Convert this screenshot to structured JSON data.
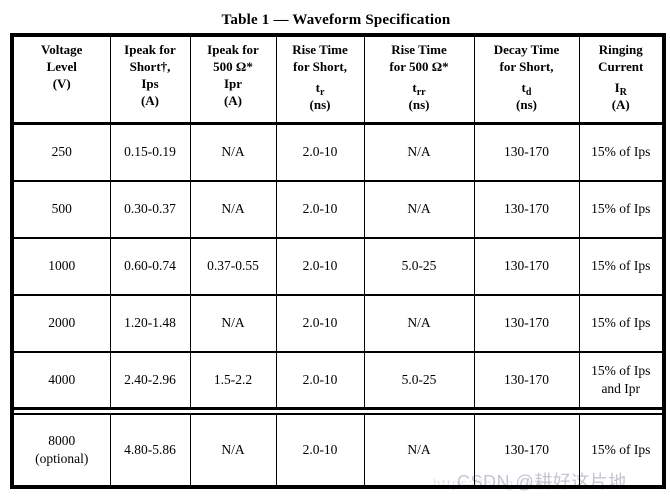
{
  "page": {
    "title": "Table 1 — Waveform Specification",
    "watermark": {
      "url_text": "https://blog.csdn",
      "label": "CSDN @耕好这片地",
      "label_color": "#c6c4cf",
      "url_color": "#e3e2e8"
    }
  },
  "table": {
    "columns": [
      {
        "id": "voltage-level",
        "lines": [
          "Voltage",
          "Level",
          "(V)"
        ]
      },
      {
        "id": "ipeak-short",
        "lines": [
          "Ipeak for",
          "Short†,",
          "Ips",
          "(A)"
        ]
      },
      {
        "id": "ipeak-500ohm",
        "lines": [
          "Ipeak for",
          "500 Ω*",
          "Ipr",
          "(A)"
        ]
      },
      {
        "id": "rise-time-short",
        "lines": [
          "Rise Time",
          "for Short,"
        ],
        "symbol": {
          "base": "t",
          "sub": "r"
        },
        "unit": "(ns)"
      },
      {
        "id": "rise-time-500ohm",
        "lines": [
          "Rise Time",
          "for 500 Ω*"
        ],
        "symbol": {
          "base": "t",
          "sub": "rr"
        },
        "unit": "(ns)"
      },
      {
        "id": "decay-time-short",
        "lines": [
          "Decay Time",
          "for Short,"
        ],
        "symbol": {
          "base": "t",
          "sub": "d"
        },
        "unit": "(ns)"
      },
      {
        "id": "ringing-current",
        "lines": [
          "Ringing",
          "Current"
        ],
        "symbol": {
          "base": "I",
          "sub": "R"
        },
        "unit": "(A)"
      }
    ],
    "rows": [
      {
        "cells": [
          "250",
          "0.15-0.19",
          "N/A",
          "2.0-10",
          "N/A",
          "130-170",
          "15% of Ips"
        ]
      },
      {
        "cells": [
          "500",
          "0.30-0.37",
          "N/A",
          "2.0-10",
          "N/A",
          "130-170",
          "15% of Ips"
        ]
      },
      {
        "cells": [
          "1000",
          "0.60-0.74",
          "0.37-0.55",
          "2.0-10",
          "5.0-25",
          "130-170",
          "15% of Ips"
        ]
      },
      {
        "cells": [
          "2000",
          "1.20-1.48",
          "N/A",
          "2.0-10",
          "N/A",
          "130-170",
          "15% of Ips"
        ]
      },
      {
        "cells": [
          "4000",
          "2.40-2.96",
          "1.5-2.2",
          "2.0-10",
          "5.0-25",
          "130-170",
          "15% of Ips\nand Ipr"
        ]
      },
      {
        "cells": [
          "8000\n(optional)",
          "4.80-5.86",
          "N/A",
          "2.0-10",
          "N/A",
          "130-170",
          "15% of Ips"
        ],
        "separator_before": true
      }
    ]
  }
}
